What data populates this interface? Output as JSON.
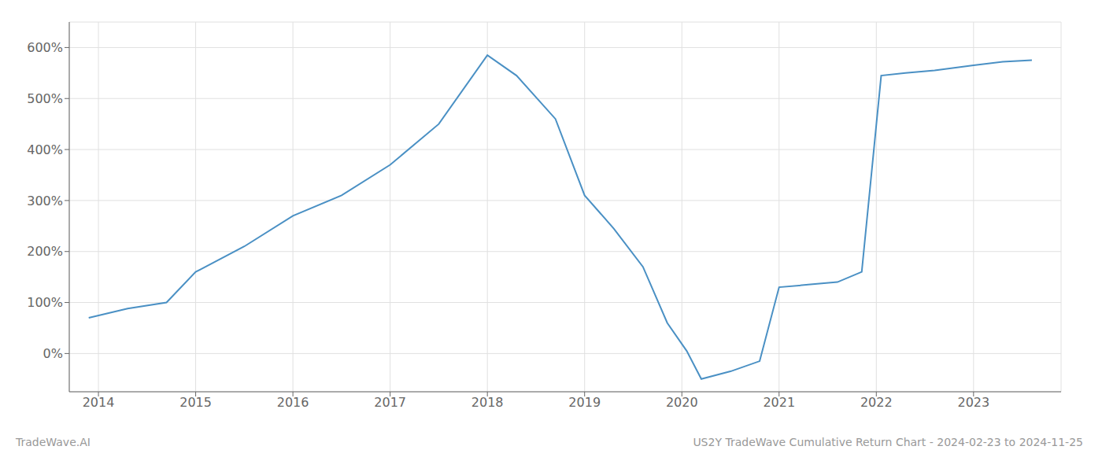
{
  "chart_data": {
    "type": "line",
    "title": "US2Y TradeWave Cumulative Return Chart - 2024-02-23 to 2024-11-25",
    "annotations": [
      "TradeWave.AI"
    ],
    "color": "#4a90c4",
    "x": [
      2013.9,
      2014.3,
      2014.7,
      2015.0,
      2015.5,
      2016.0,
      2016.5,
      2017.0,
      2017.5,
      2018.0,
      2018.3,
      2018.7,
      2019.0,
      2019.3,
      2019.6,
      2019.85,
      2020.05,
      2020.2,
      2020.5,
      2020.8,
      2021.0,
      2021.3,
      2021.6,
      2021.85,
      2022.05,
      2022.3,
      2022.6,
      2023.0,
      2023.3,
      2023.6
    ],
    "values": [
      70,
      88,
      100,
      160,
      210,
      270,
      310,
      370,
      450,
      585,
      545,
      460,
      310,
      245,
      170,
      60,
      5,
      -50,
      -35,
      -15,
      130,
      135,
      140,
      160,
      545,
      550,
      555,
      565,
      572,
      575
    ],
    "xlim": [
      2013.7,
      2023.9
    ],
    "ylim": [
      -75,
      650
    ],
    "xticks": [
      2014,
      2015,
      2016,
      2017,
      2018,
      2019,
      2020,
      2021,
      2022,
      2023
    ],
    "yticks": [
      {
        "value": 0,
        "label": "0%"
      },
      {
        "value": 100,
        "label": "100%"
      },
      {
        "value": 200,
        "label": "200%"
      },
      {
        "value": 300,
        "label": "300%"
      },
      {
        "value": 400,
        "label": "400%"
      },
      {
        "value": 500,
        "label": "500%"
      },
      {
        "value": 600,
        "label": "600%"
      }
    ],
    "grid": true
  }
}
